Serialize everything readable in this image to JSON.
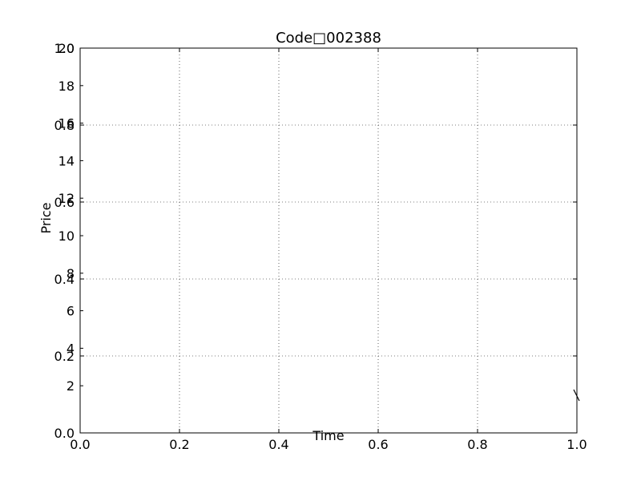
{
  "chart_data": {
    "type": "line",
    "title": "Code□002388",
    "xlabel": "Time",
    "ylabel": "Price",
    "grid": true,
    "x_axis": {
      "range": [
        0.0,
        1.0
      ],
      "ticks": [
        0.0,
        0.2,
        0.4,
        0.6,
        0.8,
        1.0
      ],
      "tick_labels": [
        "0.0",
        "0.2",
        "0.4",
        "0.6",
        "0.8",
        "1.0"
      ]
    },
    "y_axis_primary": {
      "range": [
        0.0,
        1.0
      ],
      "ticks": [
        0.0,
        0.2,
        0.4,
        0.6,
        0.8,
        1.0
      ],
      "tick_labels": [
        "0.0",
        "0.2",
        "0.4",
        "0.6",
        "0.8",
        "1.0"
      ]
    },
    "y_axis_secondary": {
      "range": [
        0,
        20
      ],
      "ticks": [
        2,
        4,
        6,
        8,
        10,
        12,
        14,
        16,
        18,
        20
      ],
      "tick_labels": [
        "2",
        "4",
        "6",
        "8",
        "10",
        "12",
        "14",
        "16",
        "18",
        "20"
      ]
    },
    "series": []
  }
}
